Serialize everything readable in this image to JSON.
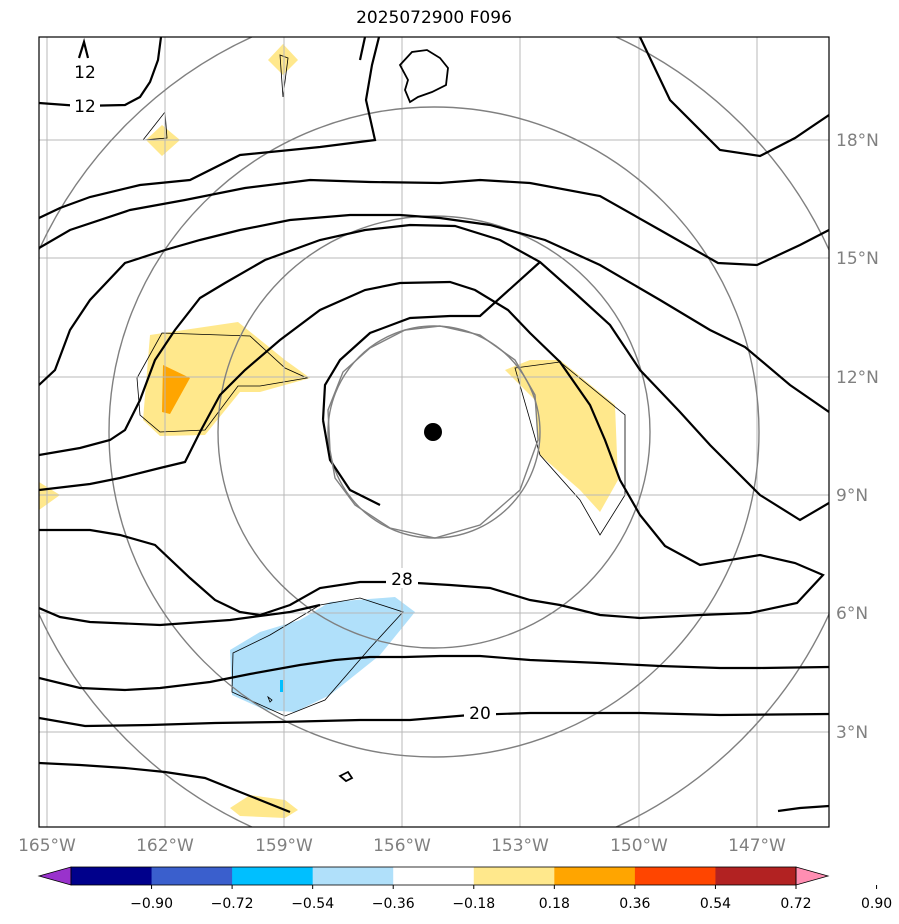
{
  "title": "2025072900 F096",
  "map": {
    "lon_ticks": [
      {
        "lon": -165,
        "label": "165°W"
      },
      {
        "lon": -162,
        "label": "162°W"
      },
      {
        "lon": -159,
        "label": "159°W"
      },
      {
        "lon": -156,
        "label": "156°W"
      },
      {
        "lon": -153,
        "label": "153°W"
      },
      {
        "lon": -150,
        "label": "150°W"
      },
      {
        "lon": -147,
        "label": "147°W"
      }
    ],
    "lat_ticks": [
      {
        "lat": 18,
        "label": "18°N"
      },
      {
        "lat": 15,
        "label": "15°N"
      },
      {
        "lat": 12,
        "label": "12°N"
      },
      {
        "lat": 9,
        "label": "9°N"
      },
      {
        "lat": 6,
        "label": "6°N"
      },
      {
        "lat": 3,
        "label": "3°N"
      }
    ],
    "center_marker": {
      "lon": -155.8,
      "lat": 10.6
    },
    "contour_labels": [
      {
        "text": "12",
        "lon": -163.9,
        "lat": 19.7
      },
      {
        "text": "12",
        "lon": -164.0,
        "lat": 18.9
      },
      {
        "text": "28",
        "lon": -156.0,
        "lat": 6.9
      },
      {
        "text": "20",
        "lon": -154.0,
        "lat": 3.5
      }
    ]
  },
  "colorbar": {
    "colors": [
      "#9932cc",
      "#00008b",
      "#3a5fcd",
      "#00bfff",
      "#b0e0fa",
      "#ffffff",
      "#ffe88c",
      "#ffa500",
      "#ff4500",
      "#b22222",
      "#ff8eb2"
    ],
    "tick_labels": [
      "−0.90",
      "−0.72",
      "−0.54",
      "−0.36",
      "−0.18",
      "0.18",
      "0.36",
      "0.54",
      "0.72",
      "0.90"
    ]
  }
}
